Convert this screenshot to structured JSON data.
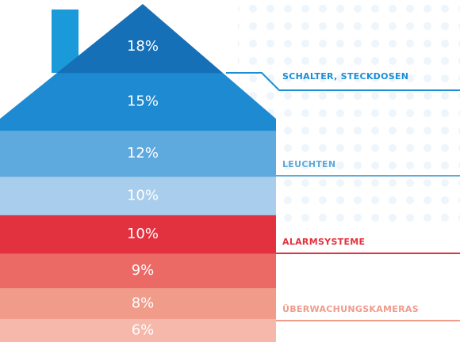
{
  "chart_data": {
    "type": "house",
    "values": [
      18,
      15,
      12,
      10,
      10,
      9,
      8,
      6
    ],
    "value_labels": [
      "18%",
      "15%",
      "12%",
      "10%",
      "10%",
      "9%",
      "8%",
      "6%"
    ],
    "colors": [
      "#1670b8",
      "#1e8ad2",
      "#5ea9dd",
      "#a9cdec",
      "#e3323f",
      "#ec6a66",
      "#f19b8b",
      "#f5b8aa"
    ],
    "annotations": [
      {
        "text": "SCHALTER, STECKDOSEN",
        "color": "#1a8fd6"
      },
      {
        "text": "LEUCHTEN",
        "color": "#5ea9dd"
      },
      {
        "text": "ALARMSYSTEME",
        "color": "#e3323f"
      },
      {
        "text": "ÜBERWACHUNGSKAMERAS",
        "color": "#f19b8b"
      }
    ]
  }
}
